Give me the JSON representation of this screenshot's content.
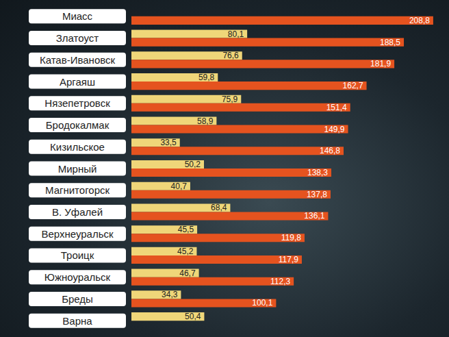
{
  "chart_data": {
    "type": "bar",
    "orientation": "horizontal",
    "categories": [
      "Миасс",
      "Златоуст",
      "Катав-Ивановск",
      "Аргаяш",
      "Нязепетровск",
      "Бродокалмак",
      "Кизильское",
      "Мирный",
      "Магнитогорск",
      "В. Уфалей",
      "Верхнеуральск",
      "Троицк",
      "Южноуральск",
      "Бреды",
      "Варна"
    ],
    "series": [
      {
        "color": "#efd679",
        "values": [
          null,
          80.1,
          76.6,
          59.8,
          75.9,
          58.9,
          33.5,
          50.2,
          40.7,
          68.4,
          45.5,
          45.2,
          46.7,
          34.3,
          50.4
        ],
        "value_labels": [
          null,
          "80,1",
          "76,6",
          "59,8",
          "75,9",
          "58,9",
          "33,5",
          "50,2",
          "40,7",
          "68,4",
          "45,5",
          "45,2",
          "46,7",
          "34,3",
          "50,4"
        ]
      },
      {
        "color": "#e5531f",
        "values": [
          208.8,
          188.5,
          181.9,
          162.7,
          151.4,
          149.9,
          146.8,
          138.3,
          137.8,
          136.1,
          119.8,
          117.9,
          112.3,
          100.1,
          null
        ],
        "value_labels": [
          "208,8",
          "188,5",
          "181,9",
          "162,7",
          "151,4",
          "149,9",
          "146,8",
          "138,3",
          "137,8",
          "136,1",
          "119,8",
          "117,9",
          "112,3",
          "100,1",
          null
        ]
      }
    ],
    "xlim": [
      0,
      215
    ],
    "data_labels": true,
    "tick_labels": false,
    "grid": false
  }
}
